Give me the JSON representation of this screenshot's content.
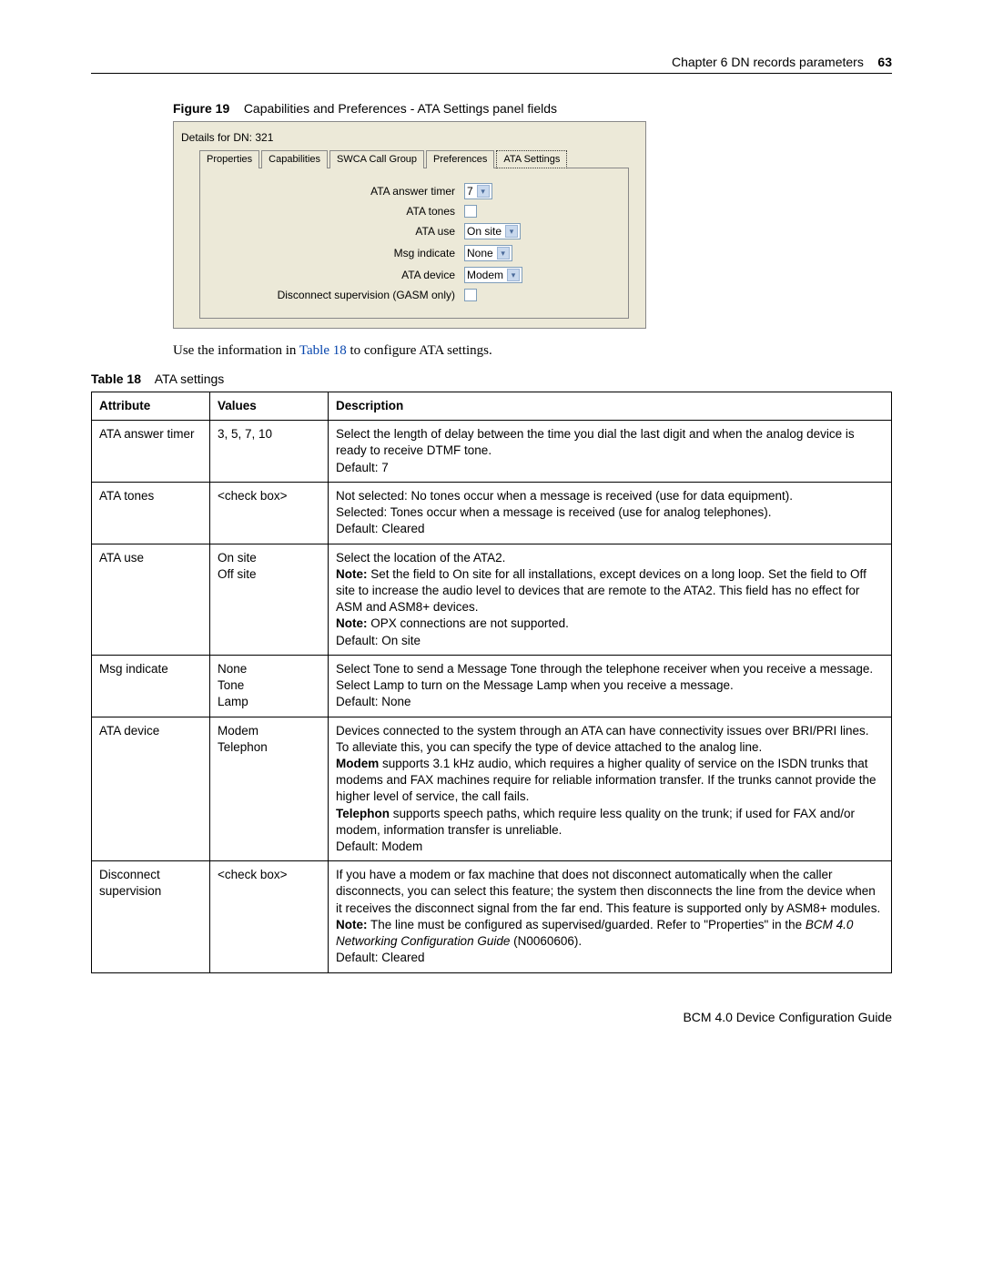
{
  "header": {
    "chapterline": "Chapter 6  DN records parameters",
    "pagenum": "63"
  },
  "figure": {
    "label": "Figure 19",
    "title": "Capabilities and Preferences - ATA Settings panel fields"
  },
  "panel": {
    "title": "Details for DN: 321",
    "tabs": {
      "t0": "Properties",
      "t1": "Capabilities",
      "t2": "SWCA Call Group",
      "t3": "Preferences",
      "t4": "ATA Settings"
    },
    "labels": {
      "answer_timer": "ATA answer timer",
      "tones": "ATA tones",
      "use": "ATA use",
      "msg": "Msg indicate",
      "device": "ATA device",
      "disc": "Disconnect supervision (GASM only)"
    },
    "values": {
      "answer_timer": "7",
      "use": "On site",
      "msg": "None",
      "device": "Modem"
    }
  },
  "lead": {
    "pre": "Use the information in ",
    "link": "Table 18",
    "post": " to configure ATA settings."
  },
  "tablecap": {
    "label": "Table 18",
    "title": "ATA settings"
  },
  "cols": {
    "attr": "Attribute",
    "val": "Values",
    "desc": "Description"
  },
  "rows": {
    "r0": {
      "attr": "ATA answer timer",
      "val": "3, 5, 7, 10",
      "d1": "Select the length of delay between the time you dial the last digit and when the analog device is ready to receive DTMF tone.",
      "d2": "Default: 7"
    },
    "r1": {
      "attr": "ATA tones",
      "val": "<check box>",
      "d1": "Not selected: No tones occur when a message is received (use for data equipment).",
      "d2": "Selected: Tones occur when a message is received (use for analog telephones).",
      "d3": "Default: Cleared"
    },
    "r2": {
      "attr": "ATA use",
      "val1": "On site",
      "val2": "Off site",
      "d1": "Select the location of the ATA2.",
      "d2a": "Note:",
      "d2b": " Set the field to On site for all installations, except devices on a long loop. Set the field to Off site to increase the audio level to devices that are remote to the ATA2. This field has no effect for ASM and ASM8+ devices.",
      "d3a": "Note:",
      "d3b": " OPX connections are not supported.",
      "d4": "Default: On site"
    },
    "r3": {
      "attr": "Msg indicate",
      "val1": "None",
      "val2": "Tone",
      "val3": "Lamp",
      "d1": "Select Tone to send a Message Tone through the telephone receiver when you receive a message.",
      "d2": "Select Lamp to turn on the Message Lamp when you receive a message.",
      "d3": "Default: None"
    },
    "r4": {
      "attr": "ATA device",
      "val1": "Modem",
      "val2": "Telephon",
      "d1": "Devices connected to the system through an ATA can have connectivity issues over BRI/PRI lines. To alleviate this, you can specify the type of device attached to the analog line.",
      "d2a": "Modem",
      "d2b": " supports 3.1 kHz audio, which requires a higher quality of service on the ISDN trunks that modems and FAX machines require for reliable information transfer. If the trunks cannot provide the higher level of service, the call fails.",
      "d3a": "Telephon",
      "d3b": " supports speech paths, which require less quality on the trunk; if used for FAX and/or modem, information transfer is unreliable.",
      "d4": "Default: Modem"
    },
    "r5": {
      "attr": "Disconnect supervision",
      "val": "<check box>",
      "d1": "If you have a modem or fax machine that does not disconnect automatically when the caller disconnects, you can select this feature; the system then disconnects the line from the device when it receives the disconnect signal from the far end. This feature is supported only by ASM8+ modules.",
      "d2a": "Note:",
      "d2b": " The line must be configured as supervised/guarded. Refer to \"Properties\" in the ",
      "d2c": "BCM 4.0 Networking Configuration Guide",
      "d2d": " (N0060606).",
      "d3": "Default: Cleared"
    }
  },
  "footer": "BCM 4.0 Device Configuration Guide"
}
